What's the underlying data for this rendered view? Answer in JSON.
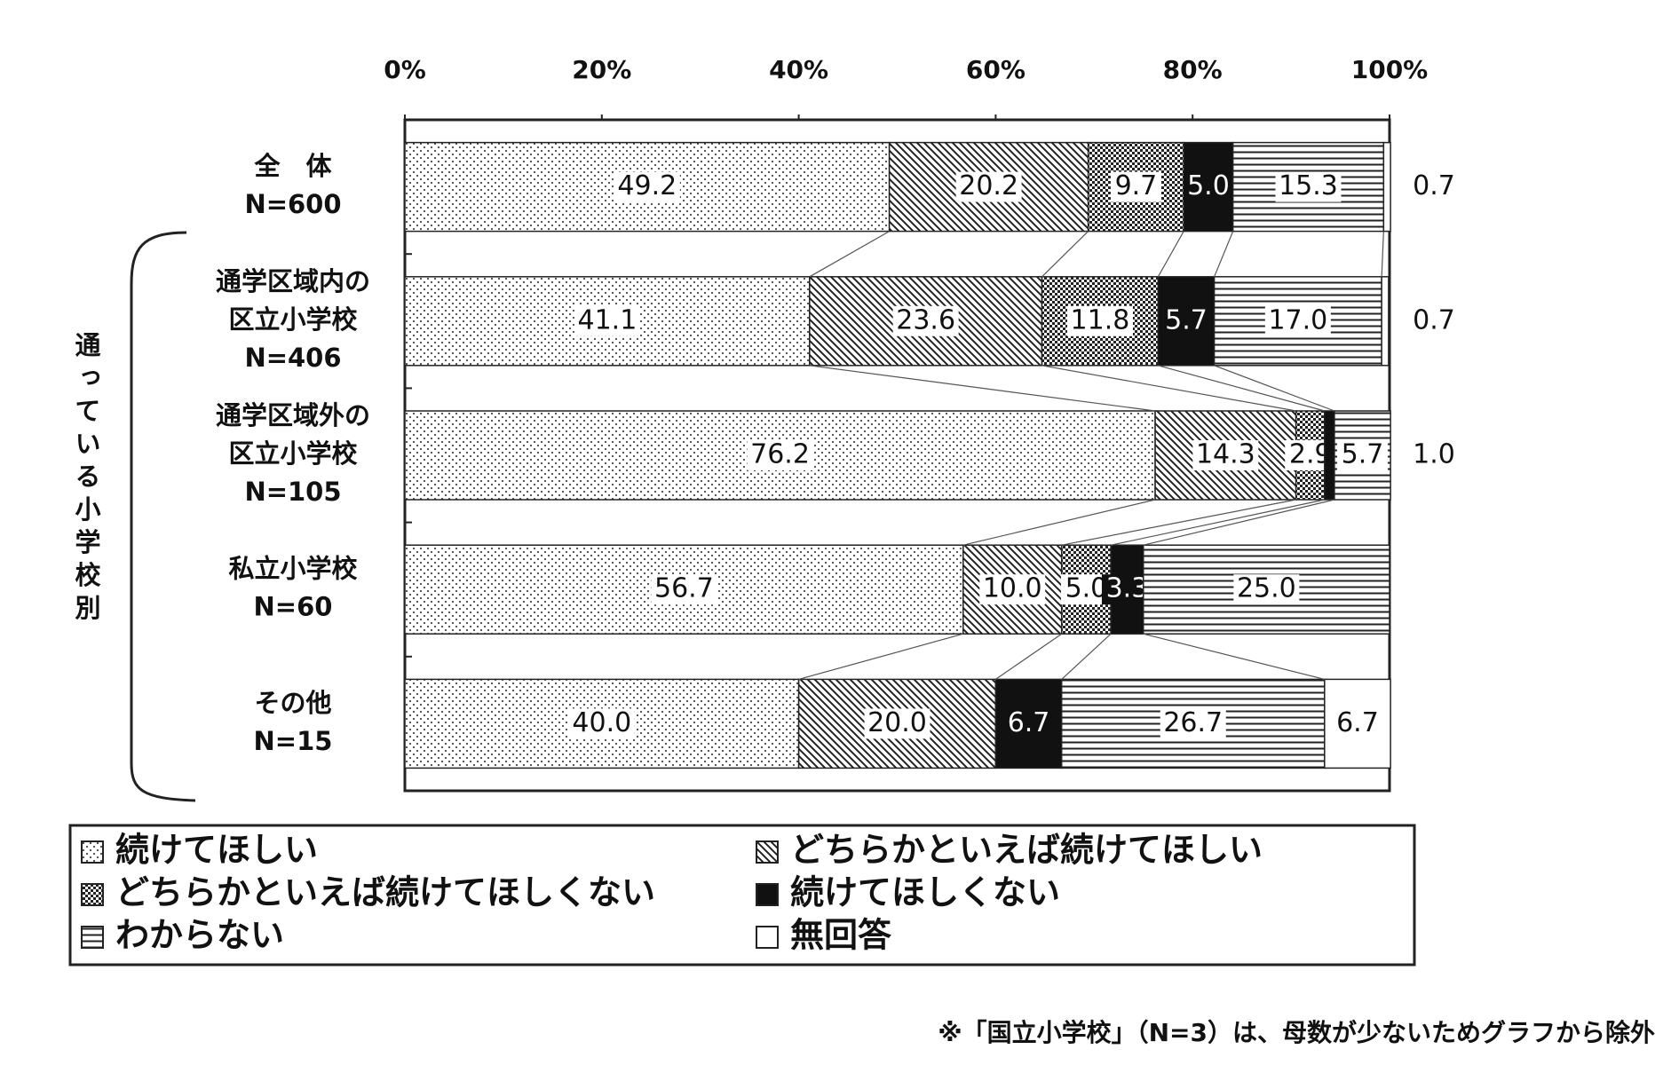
{
  "chart_data": {
    "type": "stacked_hbar",
    "categories": [
      "全　体\nN=600",
      "通学区域内の\n区立小学校\nN=406",
      "通学区域外の\n区立小学校\nN=105",
      "私立小学校\nN=60",
      "その他\nN=15"
    ],
    "group_label": "通っている小学校別",
    "xlim": [
      0,
      100
    ],
    "xticks": [
      {
        "value": 0,
        "label": "0%"
      },
      {
        "value": 20,
        "label": "20%"
      },
      {
        "value": 40,
        "label": "40%"
      },
      {
        "value": 60,
        "label": "60%"
      },
      {
        "value": 80,
        "label": "80%"
      },
      {
        "value": 100,
        "label": "100%"
      }
    ],
    "series": [
      {
        "name": "続けてほしい",
        "color": "#ffffff",
        "pattern": "dots",
        "values": [
          49.2,
          41.1,
          76.2,
          56.7,
          40.0
        ],
        "value_labels": [
          "49.2",
          "41.1",
          "76.2",
          "56.7",
          "40.0"
        ]
      },
      {
        "name": "どちらかといえば続けてほしい",
        "color": "#ffffff",
        "pattern": "diagonal",
        "values": [
          20.2,
          23.6,
          14.3,
          10.0,
          20.0
        ],
        "value_labels": [
          "20.2",
          "23.6",
          "14.3",
          "10.0",
          "20.0"
        ]
      },
      {
        "name": "どちらかといえば続けてほしくない",
        "color": "#ffffff",
        "pattern": "checker",
        "values": [
          9.7,
          11.8,
          2.9,
          5.0,
          null
        ],
        "value_labels": [
          "9.7",
          "11.8",
          "2.9",
          "5.0",
          null
        ]
      },
      {
        "name": "続けてほしくない",
        "color": "#111111",
        "pattern": "solid",
        "values": [
          5.0,
          5.7,
          1.0,
          3.3,
          6.7
        ],
        "value_labels": [
          "5.0",
          "5.7",
          "1.0",
          "3.3",
          "6.7"
        ]
      },
      {
        "name": "わからない",
        "color": "#ffffff",
        "pattern": "hlines",
        "values": [
          15.3,
          17.0,
          5.7,
          25.0,
          26.7
        ],
        "value_labels": [
          "15.3",
          "17.0",
          "5.7",
          "25.0",
          "26.7"
        ]
      },
      {
        "name": "無回答",
        "color": "#ffffff",
        "pattern": "none",
        "values": [
          0.7,
          0.7,
          null,
          null,
          6.7
        ],
        "value_labels": [
          "0.7",
          "0.7",
          null,
          null,
          "6.7"
        ]
      }
    ],
    "footnote": "※「国立小学校」（N=3）は、母数が少ないためグラフから除外"
  }
}
